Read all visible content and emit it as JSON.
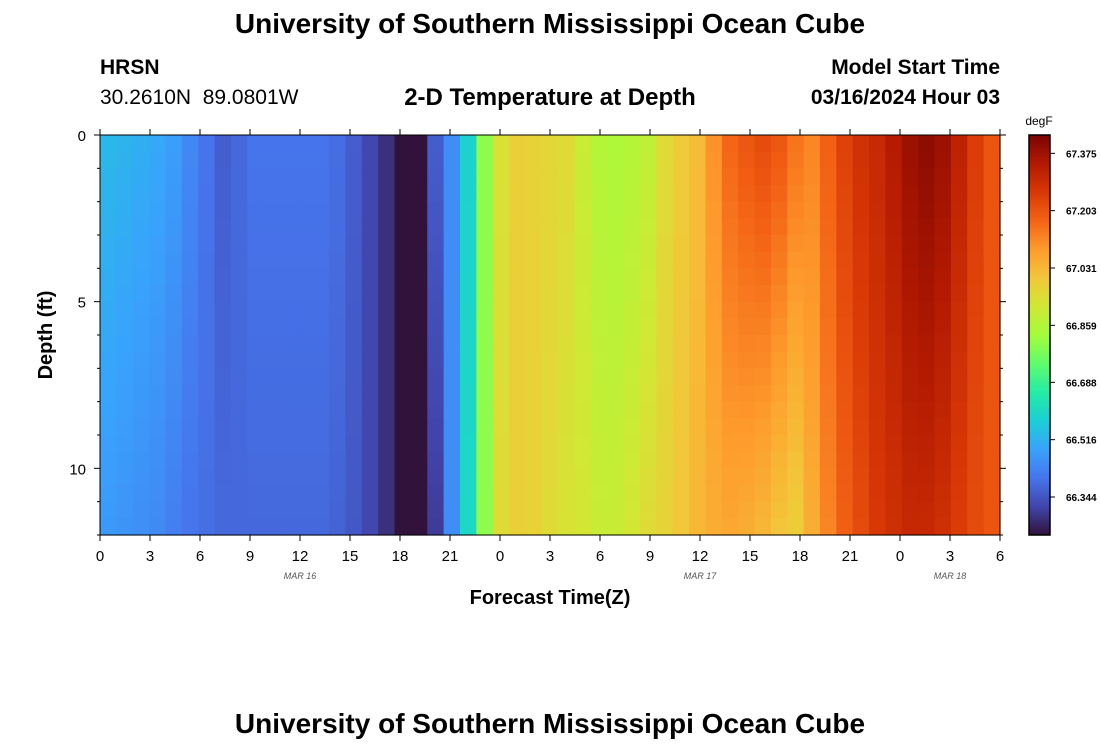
{
  "page": {
    "title": "University of Southern Mississippi Ocean Cube",
    "title_repeat": "University of Southern Mississippi Ocean Cube",
    "station_code": "HRSN",
    "station_coords": "30.2610N  89.0801W",
    "chart_title": "2-D Temperature at Depth",
    "model_label": "Model Start Time",
    "model_time": "03/16/2024 Hour 03"
  },
  "chart_data": {
    "type": "heatmap",
    "title": "2-D Temperature at Depth",
    "xlabel": "Forecast Time(Z)",
    "ylabel": "Depth (ft)",
    "colorbar_label": "degF",
    "x_hours_range": [
      0,
      54
    ],
    "x_tick_labels": [
      "0",
      "3",
      "6",
      "9",
      "12",
      "15",
      "18",
      "21",
      "0",
      "3",
      "6",
      "9",
      "12",
      "15",
      "18",
      "21",
      "0",
      "3",
      "6"
    ],
    "date_labels": [
      {
        "label": "MAR 16",
        "at_hour": 12
      },
      {
        "label": "MAR 17",
        "at_hour": 36
      },
      {
        "label": "MAR 18",
        "at_hour": 51
      }
    ],
    "ylim": [
      0,
      12
    ],
    "y_inverted": true,
    "y_tick_labels": [
      "0",
      "5",
      "10"
    ],
    "y_tick_values": [
      0,
      5,
      10
    ],
    "colorbar_ticks": [
      "67.375",
      "67.203",
      "67.031",
      "66.859",
      "66.688",
      "66.516",
      "66.344"
    ],
    "colorbar_tick_values": [
      67.375,
      67.203,
      67.031,
      66.859,
      66.688,
      66.516,
      66.344
    ],
    "color_range": [
      66.23,
      67.43
    ],
    "colors": {
      "stops": [
        "#30123b",
        "#4145ab",
        "#4675ed",
        "#39a2fc",
        "#1bcfd4",
        "#24eca6",
        "#61fc6c",
        "#a4fc3b",
        "#d1e834",
        "#f3c63a",
        "#fe9b2d",
        "#f36315",
        "#d93806",
        "#b11901",
        "#7a0403"
      ]
    },
    "surface_temp_by_hour": [
      66.53,
      66.52,
      66.51,
      66.5,
      66.48,
      66.44,
      66.4,
      66.36,
      66.38,
      66.4,
      66.4,
      66.4,
      66.4,
      66.4,
      66.39,
      66.36,
      66.32,
      66.28,
      66.22,
      66.21,
      66.36,
      66.45,
      66.58,
      66.8,
      66.93,
      66.98,
      66.97,
      66.96,
      66.95,
      66.9,
      66.86,
      66.85,
      66.86,
      66.88,
      66.95,
      66.99,
      67.02,
      67.1,
      67.17,
      67.2,
      67.22,
      67.2,
      67.15,
      67.12,
      67.18,
      67.24,
      67.28,
      67.3,
      67.34,
      67.38,
      67.4,
      67.38,
      67.32,
      67.25,
      67.2
    ],
    "bottom_temp_by_hour": [
      66.47,
      66.46,
      66.45,
      66.44,
      66.42,
      66.4,
      66.39,
      66.38,
      66.38,
      66.38,
      66.38,
      66.38,
      66.38,
      66.38,
      66.37,
      66.35,
      66.32,
      66.28,
      66.22,
      66.21,
      66.3,
      66.45,
      66.6,
      66.8,
      66.95,
      66.98,
      66.97,
      66.95,
      66.93,
      66.92,
      66.9,
      66.9,
      66.92,
      66.95,
      66.97,
      67.0,
      67.03,
      67.05,
      67.06,
      67.05,
      67.03,
      67.0,
      66.98,
      67.05,
      67.12,
      67.18,
      67.22,
      67.26,
      67.28,
      67.3,
      67.3,
      67.28,
      67.25,
      67.22,
      67.2
    ]
  }
}
